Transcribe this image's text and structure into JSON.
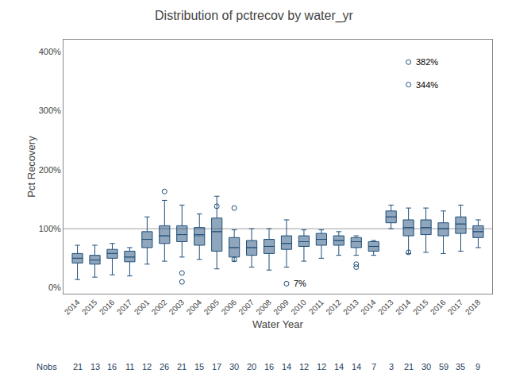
{
  "chart_data": {
    "type": "box",
    "title": "Distribution of pctrecov by water_yr",
    "xlabel": "Water Year",
    "ylabel": "Pct Recovery",
    "categories": [
      "2014",
      "2015",
      "2016",
      "2017",
      "2001",
      "2002",
      "2003",
      "2004",
      "2005",
      "2006",
      "2007",
      "2008",
      "2009",
      "2010",
      "2011",
      "2012",
      "2013",
      "2014",
      "2013",
      "2014",
      "2015",
      "2016",
      "2017",
      "2018"
    ],
    "nobs_label": "Nobs",
    "nobs": [
      21,
      13,
      16,
      11,
      12,
      26,
      21,
      15,
      17,
      30,
      20,
      16,
      14,
      12,
      12,
      14,
      14,
      7,
      3,
      21,
      30,
      59,
      35,
      9
    ],
    "boxes": [
      {
        "q1": 42,
        "median": 50,
        "q3": 58,
        "whislo": 14,
        "whishi": 72,
        "mean": 50,
        "fliers": []
      },
      {
        "q1": 40,
        "median": 47,
        "q3": 55,
        "whislo": 18,
        "whishi": 72,
        "mean": 47,
        "fliers": []
      },
      {
        "q1": 50,
        "median": 58,
        "q3": 65,
        "whislo": 22,
        "whishi": 75,
        "mean": 58,
        "fliers": []
      },
      {
        "q1": 44,
        "median": 52,
        "q3": 62,
        "whislo": 20,
        "whishi": 68,
        "mean": 52,
        "fliers": []
      },
      {
        "q1": 68,
        "median": 82,
        "q3": 95,
        "whislo": 40,
        "whishi": 120,
        "mean": 82,
        "fliers": []
      },
      {
        "q1": 75,
        "median": 88,
        "q3": 105,
        "whislo": 45,
        "whishi": 148,
        "mean": 88,
        "fliers": [
          163
        ]
      },
      {
        "q1": 78,
        "median": 90,
        "q3": 105,
        "whislo": 52,
        "whishi": 140,
        "mean": 90,
        "fliers": [
          10,
          25
        ]
      },
      {
        "q1": 72,
        "median": 90,
        "q3": 102,
        "whislo": 48,
        "whishi": 125,
        "mean": 88,
        "fliers": []
      },
      {
        "q1": 62,
        "median": 95,
        "q3": 118,
        "whislo": 32,
        "whishi": 155,
        "mean": 95,
        "fliers": [
          138
        ]
      },
      {
        "q1": 52,
        "median": 68,
        "q3": 85,
        "whislo": 45,
        "whishi": 98,
        "mean": 68,
        "fliers": [
          48,
          135
        ]
      },
      {
        "q1": 55,
        "median": 68,
        "q3": 80,
        "whislo": 35,
        "whishi": 100,
        "mean": 68,
        "fliers": []
      },
      {
        "q1": 58,
        "median": 70,
        "q3": 82,
        "whislo": 30,
        "whishi": 100,
        "mean": 70,
        "fliers": []
      },
      {
        "q1": 65,
        "median": 75,
        "q3": 88,
        "whislo": 35,
        "whishi": 115,
        "mean": 75,
        "fliers": [
          7
        ]
      },
      {
        "q1": 70,
        "median": 78,
        "q3": 88,
        "whislo": 45,
        "whishi": 98,
        "mean": 78,
        "fliers": []
      },
      {
        "q1": 72,
        "median": 82,
        "q3": 92,
        "whislo": 50,
        "whishi": 98,
        "mean": 82,
        "fliers": []
      },
      {
        "q1": 72,
        "median": 80,
        "q3": 88,
        "whislo": 55,
        "whishi": 95,
        "mean": 80,
        "fliers": []
      },
      {
        "q1": 68,
        "median": 78,
        "q3": 85,
        "whislo": 55,
        "whishi": 88,
        "mean": 78,
        "fliers": [
          35,
          40
        ]
      },
      {
        "q1": 62,
        "median": 70,
        "q3": 78,
        "whislo": 55,
        "whishi": 80,
        "mean": 70,
        "fliers": []
      },
      {
        "q1": 110,
        "median": 120,
        "q3": 130,
        "whislo": 100,
        "whishi": 140,
        "mean": 120,
        "fliers": []
      },
      {
        "q1": 88,
        "median": 102,
        "q3": 115,
        "whislo": 58,
        "whishi": 135,
        "mean": 102,
        "fliers": [
          60,
          382,
          344
        ]
      },
      {
        "q1": 90,
        "median": 102,
        "q3": 115,
        "whislo": 60,
        "whishi": 135,
        "mean": 102,
        "fliers": []
      },
      {
        "q1": 88,
        "median": 100,
        "q3": 110,
        "whislo": 58,
        "whishi": 130,
        "mean": 100,
        "fliers": []
      },
      {
        "q1": 92,
        "median": 108,
        "q3": 120,
        "whislo": 62,
        "whishi": 140,
        "mean": 108,
        "fliers": []
      },
      {
        "q1": 85,
        "median": 95,
        "q3": 105,
        "whislo": 68,
        "whishi": 115,
        "mean": 95,
        "fliers": []
      }
    ],
    "annotations": [
      {
        "index": 12,
        "y": 7,
        "text": "7%"
      },
      {
        "index": 19,
        "y": 382,
        "text": "382%"
      },
      {
        "index": 19,
        "y": 344,
        "text": "344%"
      }
    ],
    "reference_line": 100,
    "ylim": [
      -10,
      420
    ],
    "yticks": [
      {
        "value": 0,
        "label": "0%"
      },
      {
        "value": 100,
        "label": "100%"
      },
      {
        "value": 200,
        "label": "200%"
      },
      {
        "value": 300,
        "label": "300%"
      },
      {
        "value": 400,
        "label": "400%"
      }
    ],
    "grid": false,
    "color": "#1f4e79"
  }
}
